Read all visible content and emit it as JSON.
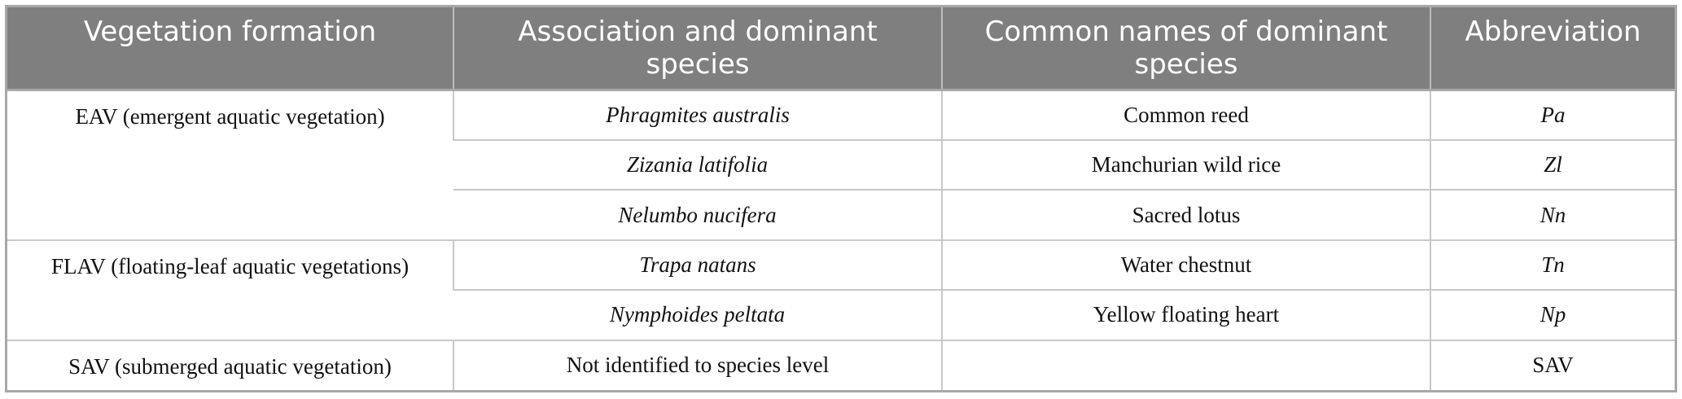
{
  "table": {
    "headers": [
      "Vegetation formation",
      "Association and dominant species",
      "Common names of dominant species",
      "Abbreviation"
    ],
    "groups": [
      {
        "formation": "EAV (emergent aquatic vegetation)",
        "rows": [
          {
            "species": "Phragmites australis",
            "common": "Common reed",
            "abbr": "Pa"
          },
          {
            "species": "Zizania latifolia",
            "common": "Manchurian wild rice",
            "abbr": "Zl"
          },
          {
            "species": "Nelumbo nucifera",
            "common": "Sacred lotus",
            "abbr": "Nn"
          }
        ]
      },
      {
        "formation": "FLAV (floating-leaf aquatic vegetations)",
        "rows": [
          {
            "species": "Trapa natans",
            "common": "Water chestnut",
            "abbr": "Tn"
          },
          {
            "species": "Nymphoides peltata",
            "common": "Yellow floating heart",
            "abbr": "Np"
          }
        ]
      },
      {
        "formation": "SAV (submerged aquatic vegetation)",
        "rows": [
          {
            "species": "Not identified to species level",
            "common": "",
            "abbr": "SAV"
          }
        ]
      }
    ]
  }
}
